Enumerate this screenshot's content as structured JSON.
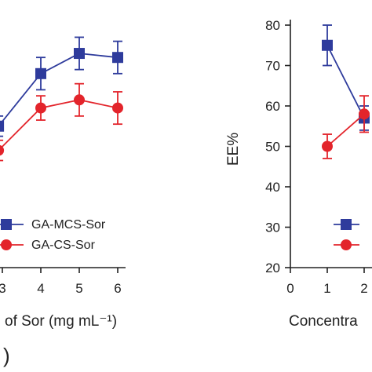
{
  "colors": {
    "blue": "#2e3b9c",
    "red": "#e3242b",
    "axis": "#222222"
  },
  "chart_data": [
    {
      "type": "line",
      "xlabel": "of Sor (mg mL⁻¹)",
      "ylabel": "",
      "x_tick_labels": [
        "3",
        "4",
        "5",
        "6"
      ],
      "xlim": [
        2.85,
        6.3
      ],
      "ylim": [
        20,
        85
      ],
      "panel_label": ")",
      "legend_position": "bottom-right",
      "series": [
        {
          "name": "GA-MCS-Sor",
          "color": "#2e3b9c",
          "marker": "square",
          "x": [
            2.9,
            4,
            5,
            6
          ],
          "y": [
            55,
            68,
            73,
            72
          ],
          "err": [
            2.5,
            4,
            4,
            4
          ]
        },
        {
          "name": "GA-CS-Sor",
          "color": "#e3242b",
          "marker": "circle",
          "x": [
            2.9,
            4,
            5,
            6
          ],
          "y": [
            49,
            59.5,
            61.5,
            59.5
          ],
          "err": [
            2.5,
            3,
            4,
            4
          ]
        }
      ]
    },
    {
      "type": "line",
      "xlabel": "Concentra",
      "ylabel": "EE%",
      "y_tick_labels": [
        "20",
        "30",
        "40",
        "50",
        "60",
        "70",
        "80"
      ],
      "x_tick_labels": [
        "0",
        "1",
        "2"
      ],
      "xlim": [
        0,
        2.25
      ],
      "ylim": [
        20,
        85
      ],
      "legend_position": "bottom-right",
      "series": [
        {
          "name": "",
          "color": "#2e3b9c",
          "marker": "square",
          "x": [
            1,
            2
          ],
          "y": [
            75,
            57
          ],
          "err": [
            5,
            3
          ]
        },
        {
          "name": "",
          "color": "#e3242b",
          "marker": "circle",
          "x": [
            1,
            2
          ],
          "y": [
            50,
            58
          ],
          "err": [
            3,
            4.5
          ]
        }
      ]
    }
  ]
}
